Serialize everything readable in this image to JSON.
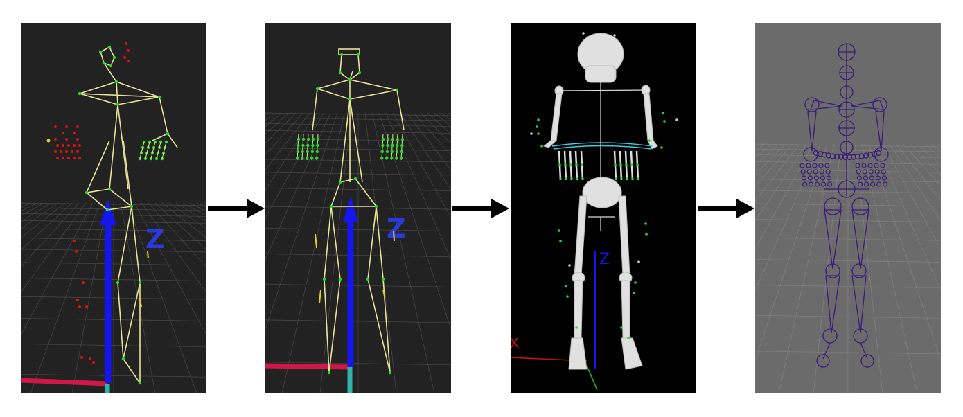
{
  "stages": [
    {
      "id": "raw-markers-skeleton",
      "axis_label": "Z"
    },
    {
      "id": "fitted-skeleton",
      "axis_label": "Z"
    },
    {
      "id": "bone-model",
      "axis_label": "Z"
    },
    {
      "id": "rig-output",
      "axis_label": ""
    }
  ],
  "colors": {
    "panel_dark": "#222222",
    "panel_black": "#000000",
    "panel_gray": "#6b6b6b",
    "skeleton_line": "#e8e49a",
    "joint_green": "#22dd22",
    "marker_red": "#e01010",
    "marker_yellow": "#e8d020",
    "axis_blue": "#1515f0",
    "axis_red": "#d01848",
    "axis_teal": "#2fb3a8",
    "rig_purple": "#3a1a7a",
    "arrow": "#000000"
  }
}
